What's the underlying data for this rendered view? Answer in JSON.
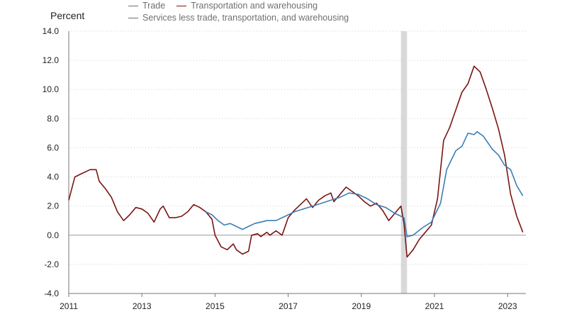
{
  "chart_data": {
    "type": "line",
    "ylabel": "Percent",
    "ylim": [
      -4,
      14
    ],
    "y_ticks": [
      "14.0",
      "12.0",
      "10.0",
      "8.0",
      "6.0",
      "4.0",
      "2.0",
      "0.0",
      "-2.0",
      "-4.0"
    ],
    "x_range": [
      "2011-01",
      "2023-07"
    ],
    "x_ticks": [
      "2011",
      "2013",
      "2015",
      "2017",
      "2019",
      "2021",
      "2023"
    ],
    "grid": true,
    "legend_position": "top",
    "recession_shading": {
      "from": "2020-02",
      "to": "2020-04",
      "color": "#d9d9d9"
    },
    "series": [
      {
        "name": "Trade",
        "color": "#6e6e6e",
        "points": []
      },
      {
        "name": "Transportation and warehousing",
        "color": "#7b1414",
        "points": [
          [
            "2011-01",
            2.4
          ],
          [
            "2011-03",
            4.0
          ],
          [
            "2011-05",
            4.2
          ],
          [
            "2011-08",
            4.5
          ],
          [
            "2011-10",
            4.5
          ],
          [
            "2011-11",
            3.7
          ],
          [
            "2012-01",
            3.2
          ],
          [
            "2012-03",
            2.6
          ],
          [
            "2012-05",
            1.6
          ],
          [
            "2012-07",
            1.0
          ],
          [
            "2012-09",
            1.4
          ],
          [
            "2012-11",
            1.9
          ],
          [
            "2013-01",
            1.8
          ],
          [
            "2013-03",
            1.5
          ],
          [
            "2013-05",
            0.9
          ],
          [
            "2013-07",
            1.8
          ],
          [
            "2013-08",
            2.0
          ],
          [
            "2013-10",
            1.2
          ],
          [
            "2013-12",
            1.2
          ],
          [
            "2014-02",
            1.3
          ],
          [
            "2014-04",
            1.6
          ],
          [
            "2014-06",
            2.1
          ],
          [
            "2014-08",
            1.9
          ],
          [
            "2014-10",
            1.6
          ],
          [
            "2014-12",
            1.1
          ],
          [
            "2015-01",
            0.0
          ],
          [
            "2015-03",
            -0.8
          ],
          [
            "2015-05",
            -1.0
          ],
          [
            "2015-07",
            -0.6
          ],
          [
            "2015-08",
            -1.0
          ],
          [
            "2015-10",
            -1.3
          ],
          [
            "2015-12",
            -1.1
          ],
          [
            "2016-01",
            0.0
          ],
          [
            "2016-03",
            0.1
          ],
          [
            "2016-04",
            -0.1
          ],
          [
            "2016-06",
            0.2
          ],
          [
            "2016-07",
            0.0
          ],
          [
            "2016-09",
            0.3
          ],
          [
            "2016-11",
            0.0
          ],
          [
            "2017-01",
            1.2
          ],
          [
            "2017-03",
            1.7
          ],
          [
            "2017-05",
            2.1
          ],
          [
            "2017-07",
            2.5
          ],
          [
            "2017-09",
            1.9
          ],
          [
            "2017-11",
            2.4
          ],
          [
            "2018-01",
            2.7
          ],
          [
            "2018-03",
            2.9
          ],
          [
            "2018-04",
            2.3
          ],
          [
            "2018-06",
            2.8
          ],
          [
            "2018-08",
            3.3
          ],
          [
            "2018-10",
            3.0
          ],
          [
            "2018-12",
            2.7
          ],
          [
            "2019-02",
            2.3
          ],
          [
            "2019-04",
            2.0
          ],
          [
            "2019-06",
            2.2
          ],
          [
            "2019-08",
            1.7
          ],
          [
            "2019-10",
            1.0
          ],
          [
            "2019-12",
            1.5
          ],
          [
            "2020-02",
            2.0
          ],
          [
            "2020-03",
            0.8
          ],
          [
            "2020-04",
            -1.5
          ],
          [
            "2020-06",
            -1.0
          ],
          [
            "2020-08",
            -0.3
          ],
          [
            "2020-10",
            0.2
          ],
          [
            "2020-12",
            0.7
          ],
          [
            "2021-02",
            2.5
          ],
          [
            "2021-04",
            6.5
          ],
          [
            "2021-06",
            7.4
          ],
          [
            "2021-08",
            8.6
          ],
          [
            "2021-10",
            9.8
          ],
          [
            "2021-12",
            10.4
          ],
          [
            "2022-02",
            11.6
          ],
          [
            "2022-04",
            11.2
          ],
          [
            "2022-06",
            10.0
          ],
          [
            "2022-08",
            8.7
          ],
          [
            "2022-10",
            7.3
          ],
          [
            "2022-12",
            5.5
          ],
          [
            "2023-02",
            2.8
          ],
          [
            "2023-04",
            1.3
          ],
          [
            "2023-06",
            0.2
          ]
        ]
      },
      {
        "name": "Services less trade, transportation, and warehousing",
        "color": "#3a7fb5",
        "points": [
          [
            "2014-10",
            1.6
          ],
          [
            "2014-12",
            1.4
          ],
          [
            "2015-02",
            1.0
          ],
          [
            "2015-04",
            0.7
          ],
          [
            "2015-06",
            0.8
          ],
          [
            "2015-08",
            0.6
          ],
          [
            "2015-10",
            0.4
          ],
          [
            "2015-12",
            0.6
          ],
          [
            "2016-02",
            0.8
          ],
          [
            "2016-04",
            0.9
          ],
          [
            "2016-06",
            1.0
          ],
          [
            "2016-09",
            1.0
          ],
          [
            "2016-12",
            1.3
          ],
          [
            "2017-03",
            1.6
          ],
          [
            "2017-06",
            1.8
          ],
          [
            "2017-09",
            2.0
          ],
          [
            "2017-12",
            2.2
          ],
          [
            "2018-03",
            2.4
          ],
          [
            "2018-06",
            2.6
          ],
          [
            "2018-09",
            2.9
          ],
          [
            "2018-12",
            2.8
          ],
          [
            "2019-03",
            2.5
          ],
          [
            "2019-06",
            2.1
          ],
          [
            "2019-09",
            1.9
          ],
          [
            "2019-12",
            1.5
          ],
          [
            "2020-03",
            1.2
          ],
          [
            "2020-04",
            -0.1
          ],
          [
            "2020-06",
            0.0
          ],
          [
            "2020-09",
            0.5
          ],
          [
            "2020-12",
            0.9
          ],
          [
            "2021-03",
            2.2
          ],
          [
            "2021-05",
            4.5
          ],
          [
            "2021-08",
            5.8
          ],
          [
            "2021-10",
            6.1
          ],
          [
            "2021-12",
            7.0
          ],
          [
            "2022-02",
            6.9
          ],
          [
            "2022-03",
            7.1
          ],
          [
            "2022-05",
            6.8
          ],
          [
            "2022-08",
            5.9
          ],
          [
            "2022-10",
            5.5
          ],
          [
            "2022-12",
            4.8
          ],
          [
            "2023-02",
            4.5
          ],
          [
            "2023-04",
            3.4
          ],
          [
            "2023-06",
            2.7
          ]
        ]
      }
    ]
  }
}
